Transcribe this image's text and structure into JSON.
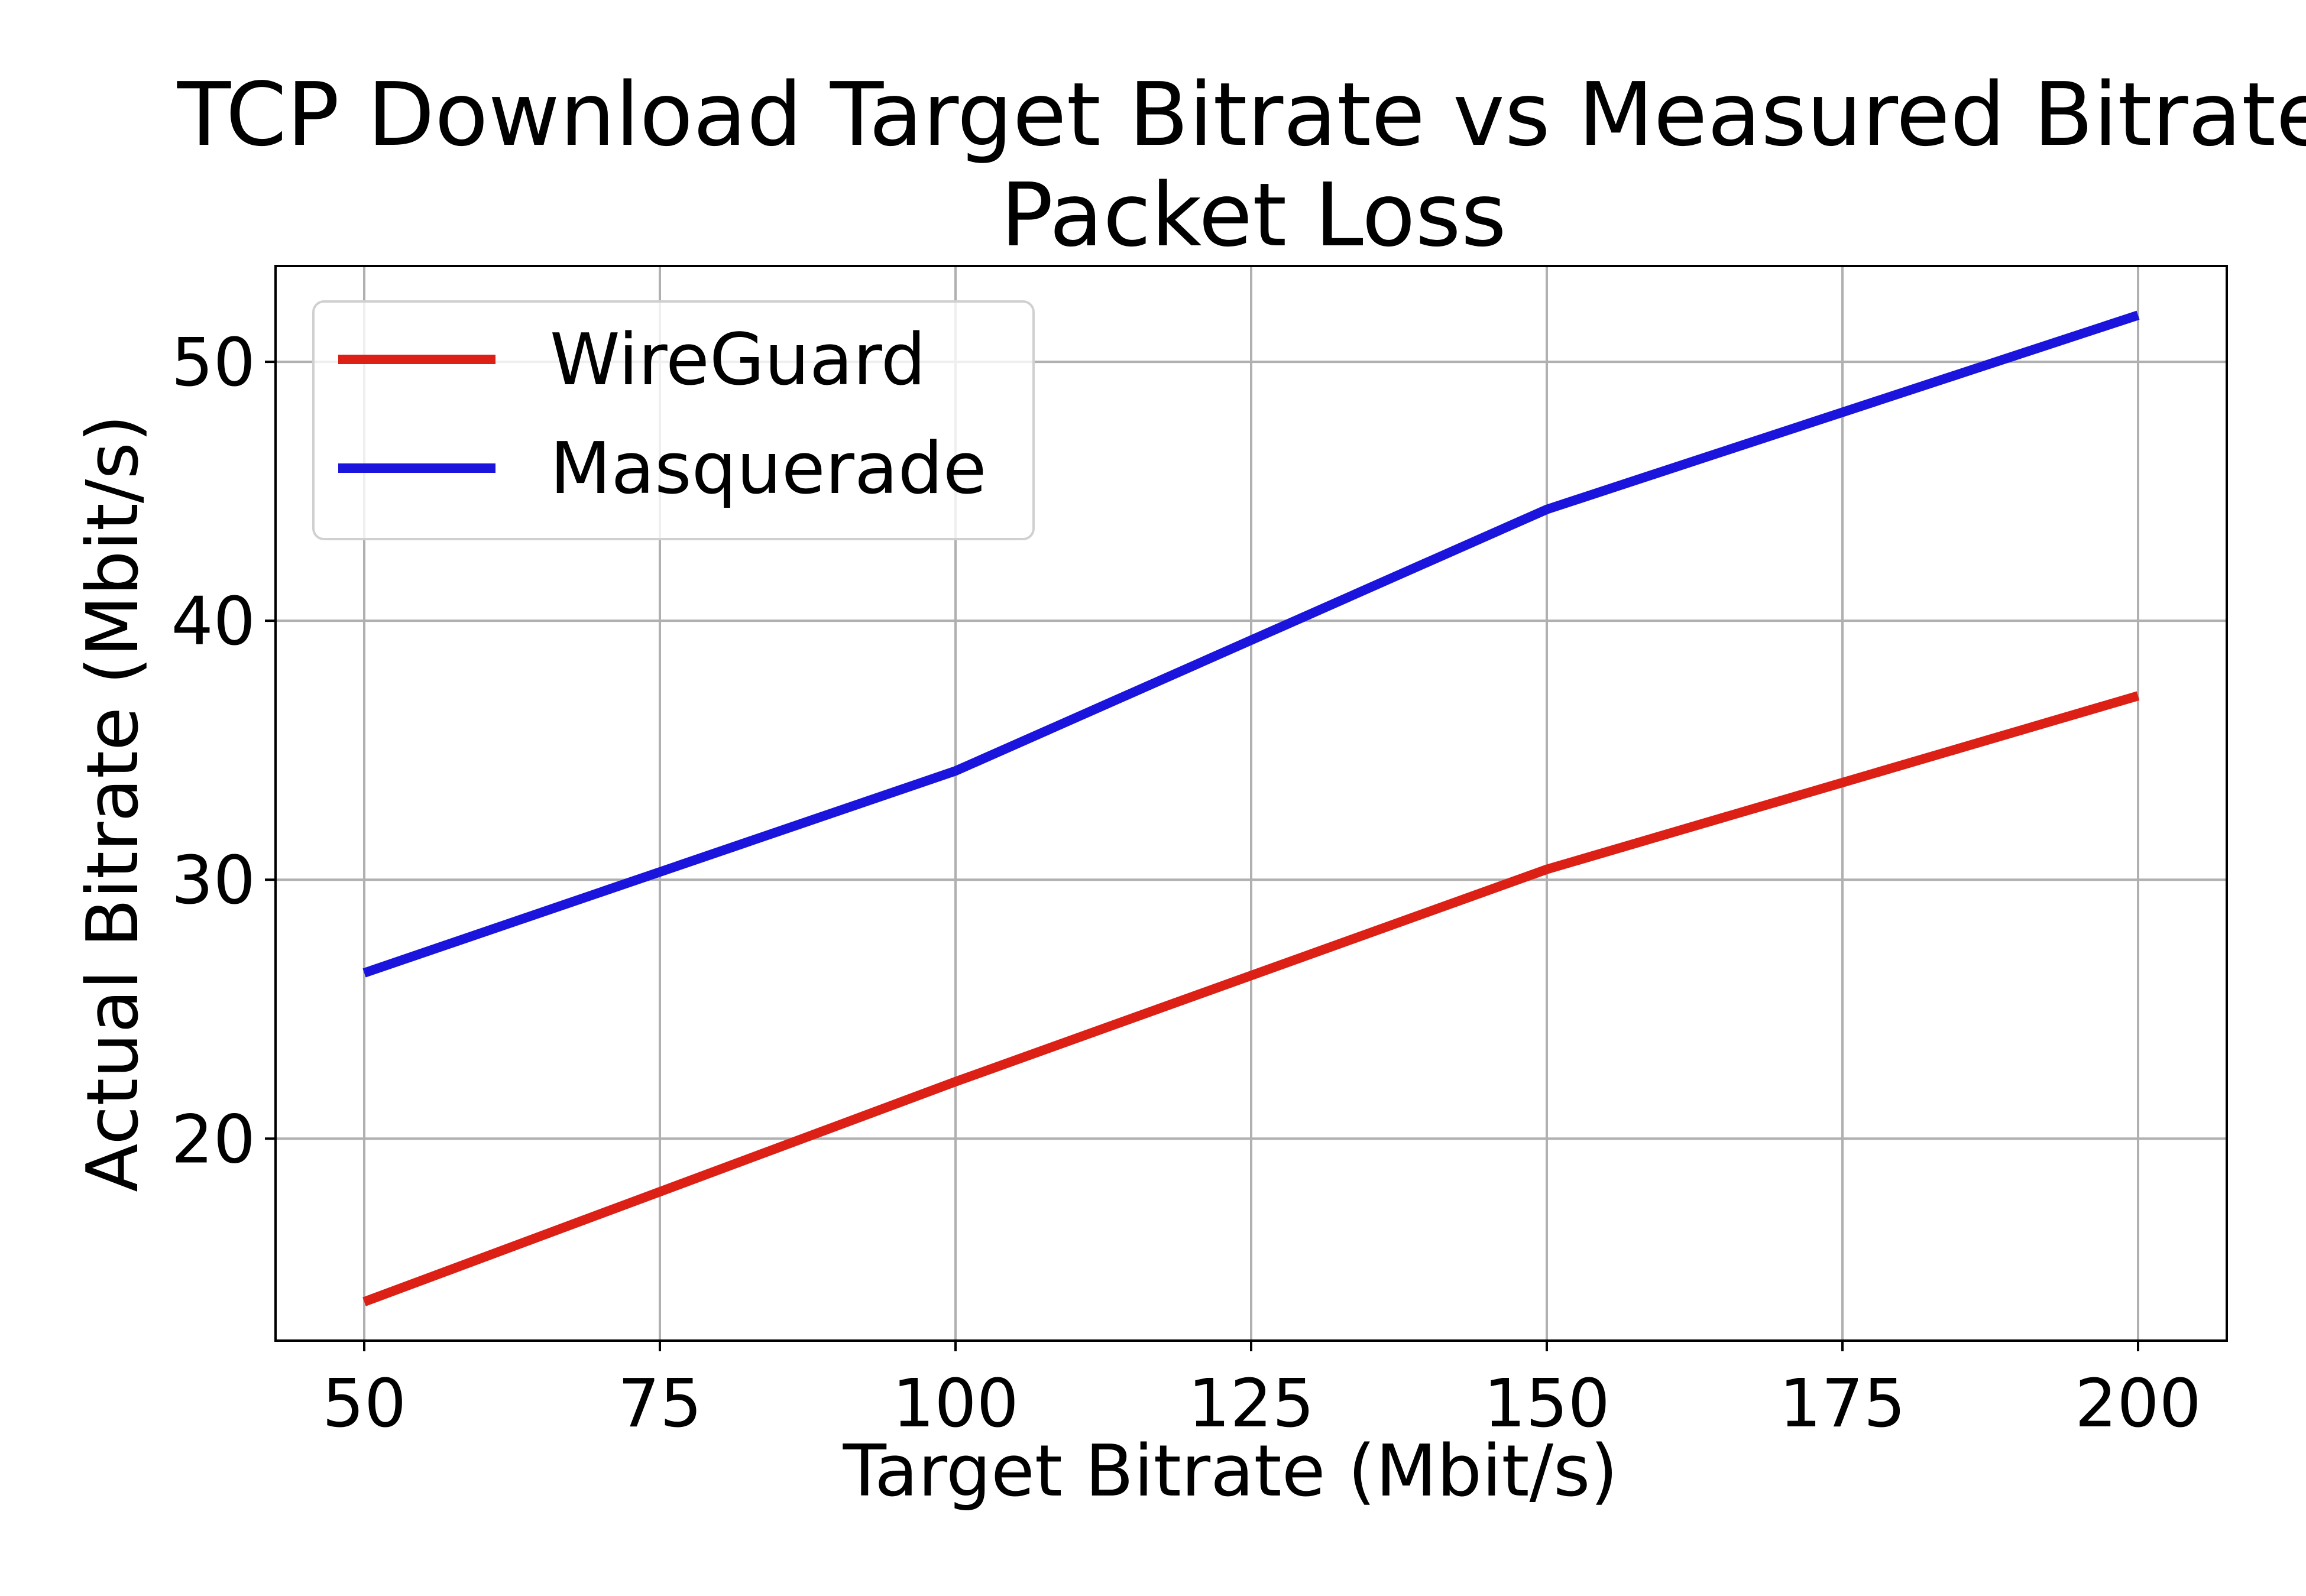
{
  "chart_data": {
    "type": "line",
    "title": "TCP Download Target Bitrate vs Measured Bitrate",
    "subtitle": "Packet Loss",
    "xlabel": "Target Bitrate (Mbit/s)",
    "ylabel": "Actual Bitrate (Mbit/s)",
    "x": [
      50,
      100,
      150,
      200
    ],
    "xlim": [
      42.5,
      207.5
    ],
    "ylim": [
      12.2,
      53.7
    ],
    "xticks": [
      50,
      75,
      100,
      125,
      150,
      175,
      200
    ],
    "yticks": [
      20,
      30,
      40,
      50
    ],
    "grid": true,
    "legend_position": "top-left",
    "series": [
      {
        "name": "WireGuard",
        "color": "#dc2016",
        "values": [
          13.7,
          22.2,
          30.4,
          37.1
        ]
      },
      {
        "name": "Masquerade",
        "color": "#1a14dc",
        "values": [
          26.4,
          34.2,
          44.3,
          51.8
        ]
      }
    ]
  }
}
